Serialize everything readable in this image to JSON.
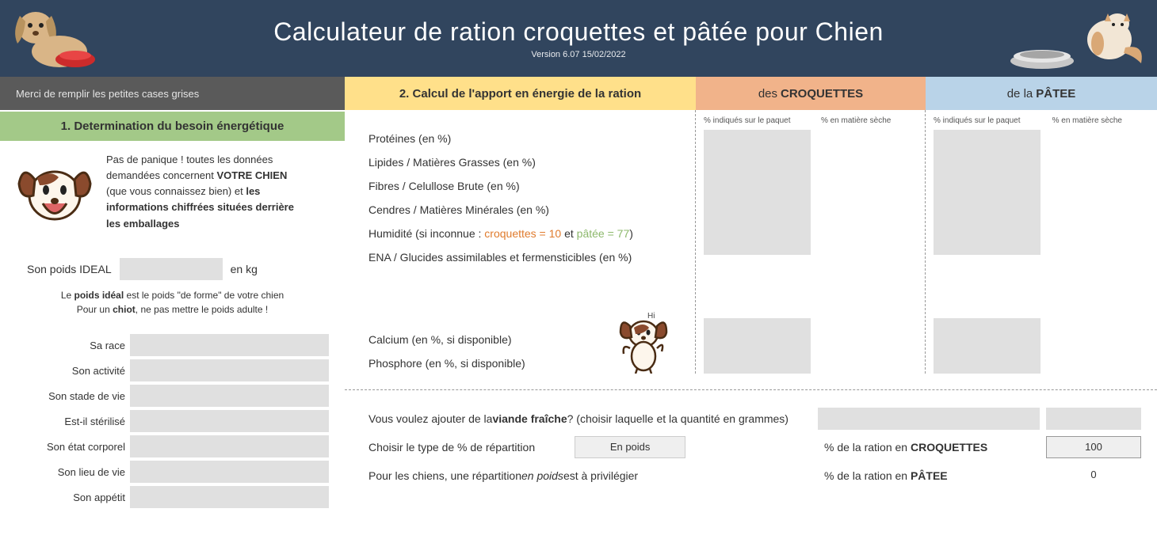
{
  "header": {
    "title": "Calculateur de ration croquettes et pâtée pour Chien",
    "version": "Version 6.07 15/02/2022"
  },
  "colors": {
    "header_bg": "#31455e",
    "instruction_bg": "#5a5a5a",
    "section1_bg": "#a3c988",
    "section2_bg": "#ffe08a",
    "croquettes_bg": "#f1b38a",
    "patee_bg": "#b9d3e8",
    "input_bg": "#e0e0e0"
  },
  "instruction": "Merci de remplir les petites cases grises",
  "section1": {
    "title": "1. Determination du besoin énergétique",
    "intro_l1": "Pas de panique ! toutes les données",
    "intro_l2a": "demandées concernent ",
    "intro_l2b": "VOTRE CHIEN",
    "intro_l3a": "(que vous connaissez bien) et ",
    "intro_l3b": "les",
    "intro_l4": "informations chiffrées situées derrière",
    "intro_l5": "les emballages",
    "poids_label": "Son poids IDEAL",
    "poids_unit": "en kg",
    "poids_help_l1a": "Le ",
    "poids_help_l1b": "poids idéal",
    "poids_help_l1c": " est le poids \"de forme\" de votre chien",
    "poids_help_l2a": "Pour un ",
    "poids_help_l2b": "chiot",
    "poids_help_l2c": ", ne pas mettre le poids adulte !",
    "attrs": [
      "Sa race",
      "Son activité",
      "Son stade de vie",
      "Est-il stérilisé",
      "Son état corporel",
      "Son lieu de vie",
      "Son appétit"
    ]
  },
  "section2": {
    "title": "2. Calcul de l'apport en énergie de la ration",
    "croq_prefix": "des ",
    "croq_bold": "CROQUETTES",
    "patee_prefix": "de la ",
    "patee_bold": "PÂTEE",
    "col_header1": "% indiqués sur le paquet",
    "col_header2": "% en matière sèche",
    "nutrients_top": [
      "Protéines (en %)",
      "Lipides  / Matières Grasses (en %)",
      "Fibres / Celullose Brute (en %)",
      "Cendres / Matières Minérales (en %)"
    ],
    "humidity_prefix": "Humidité (si inconnue : ",
    "humidity_croq": "croquettes = 10",
    "humidity_mid": " et ",
    "humidity_patee": "pâtée = 77",
    "humidity_suffix": ")",
    "ena": "ENA  / Glucides assimilables et fermensticibles (en %)",
    "nutrients_bottom": [
      "Calcium (en %, si disponible)",
      "Phosphore (en %, si disponible)"
    ]
  },
  "bottom": {
    "meat_l1a": "Vous voulez ajouter de la ",
    "meat_l1b": "viande fraîche",
    "meat_l1c": " ? (choisir laquelle et la quantité en grammes)",
    "repartition_label": "Choisir le type de % de répartition",
    "enpoids": "En poids",
    "ration_croq_prefix": "% de la ration en ",
    "ration_croq_bold": "CROQUETTES",
    "ration_croq_val": "100",
    "ration_patee_prefix": "% de la ration en ",
    "ration_patee_bold": "PÂTEE",
    "ration_patee_val": "0",
    "note_a": "Pour les chiens, une répartition ",
    "note_b": "en poids",
    "note_c": "  est à privilégier"
  }
}
